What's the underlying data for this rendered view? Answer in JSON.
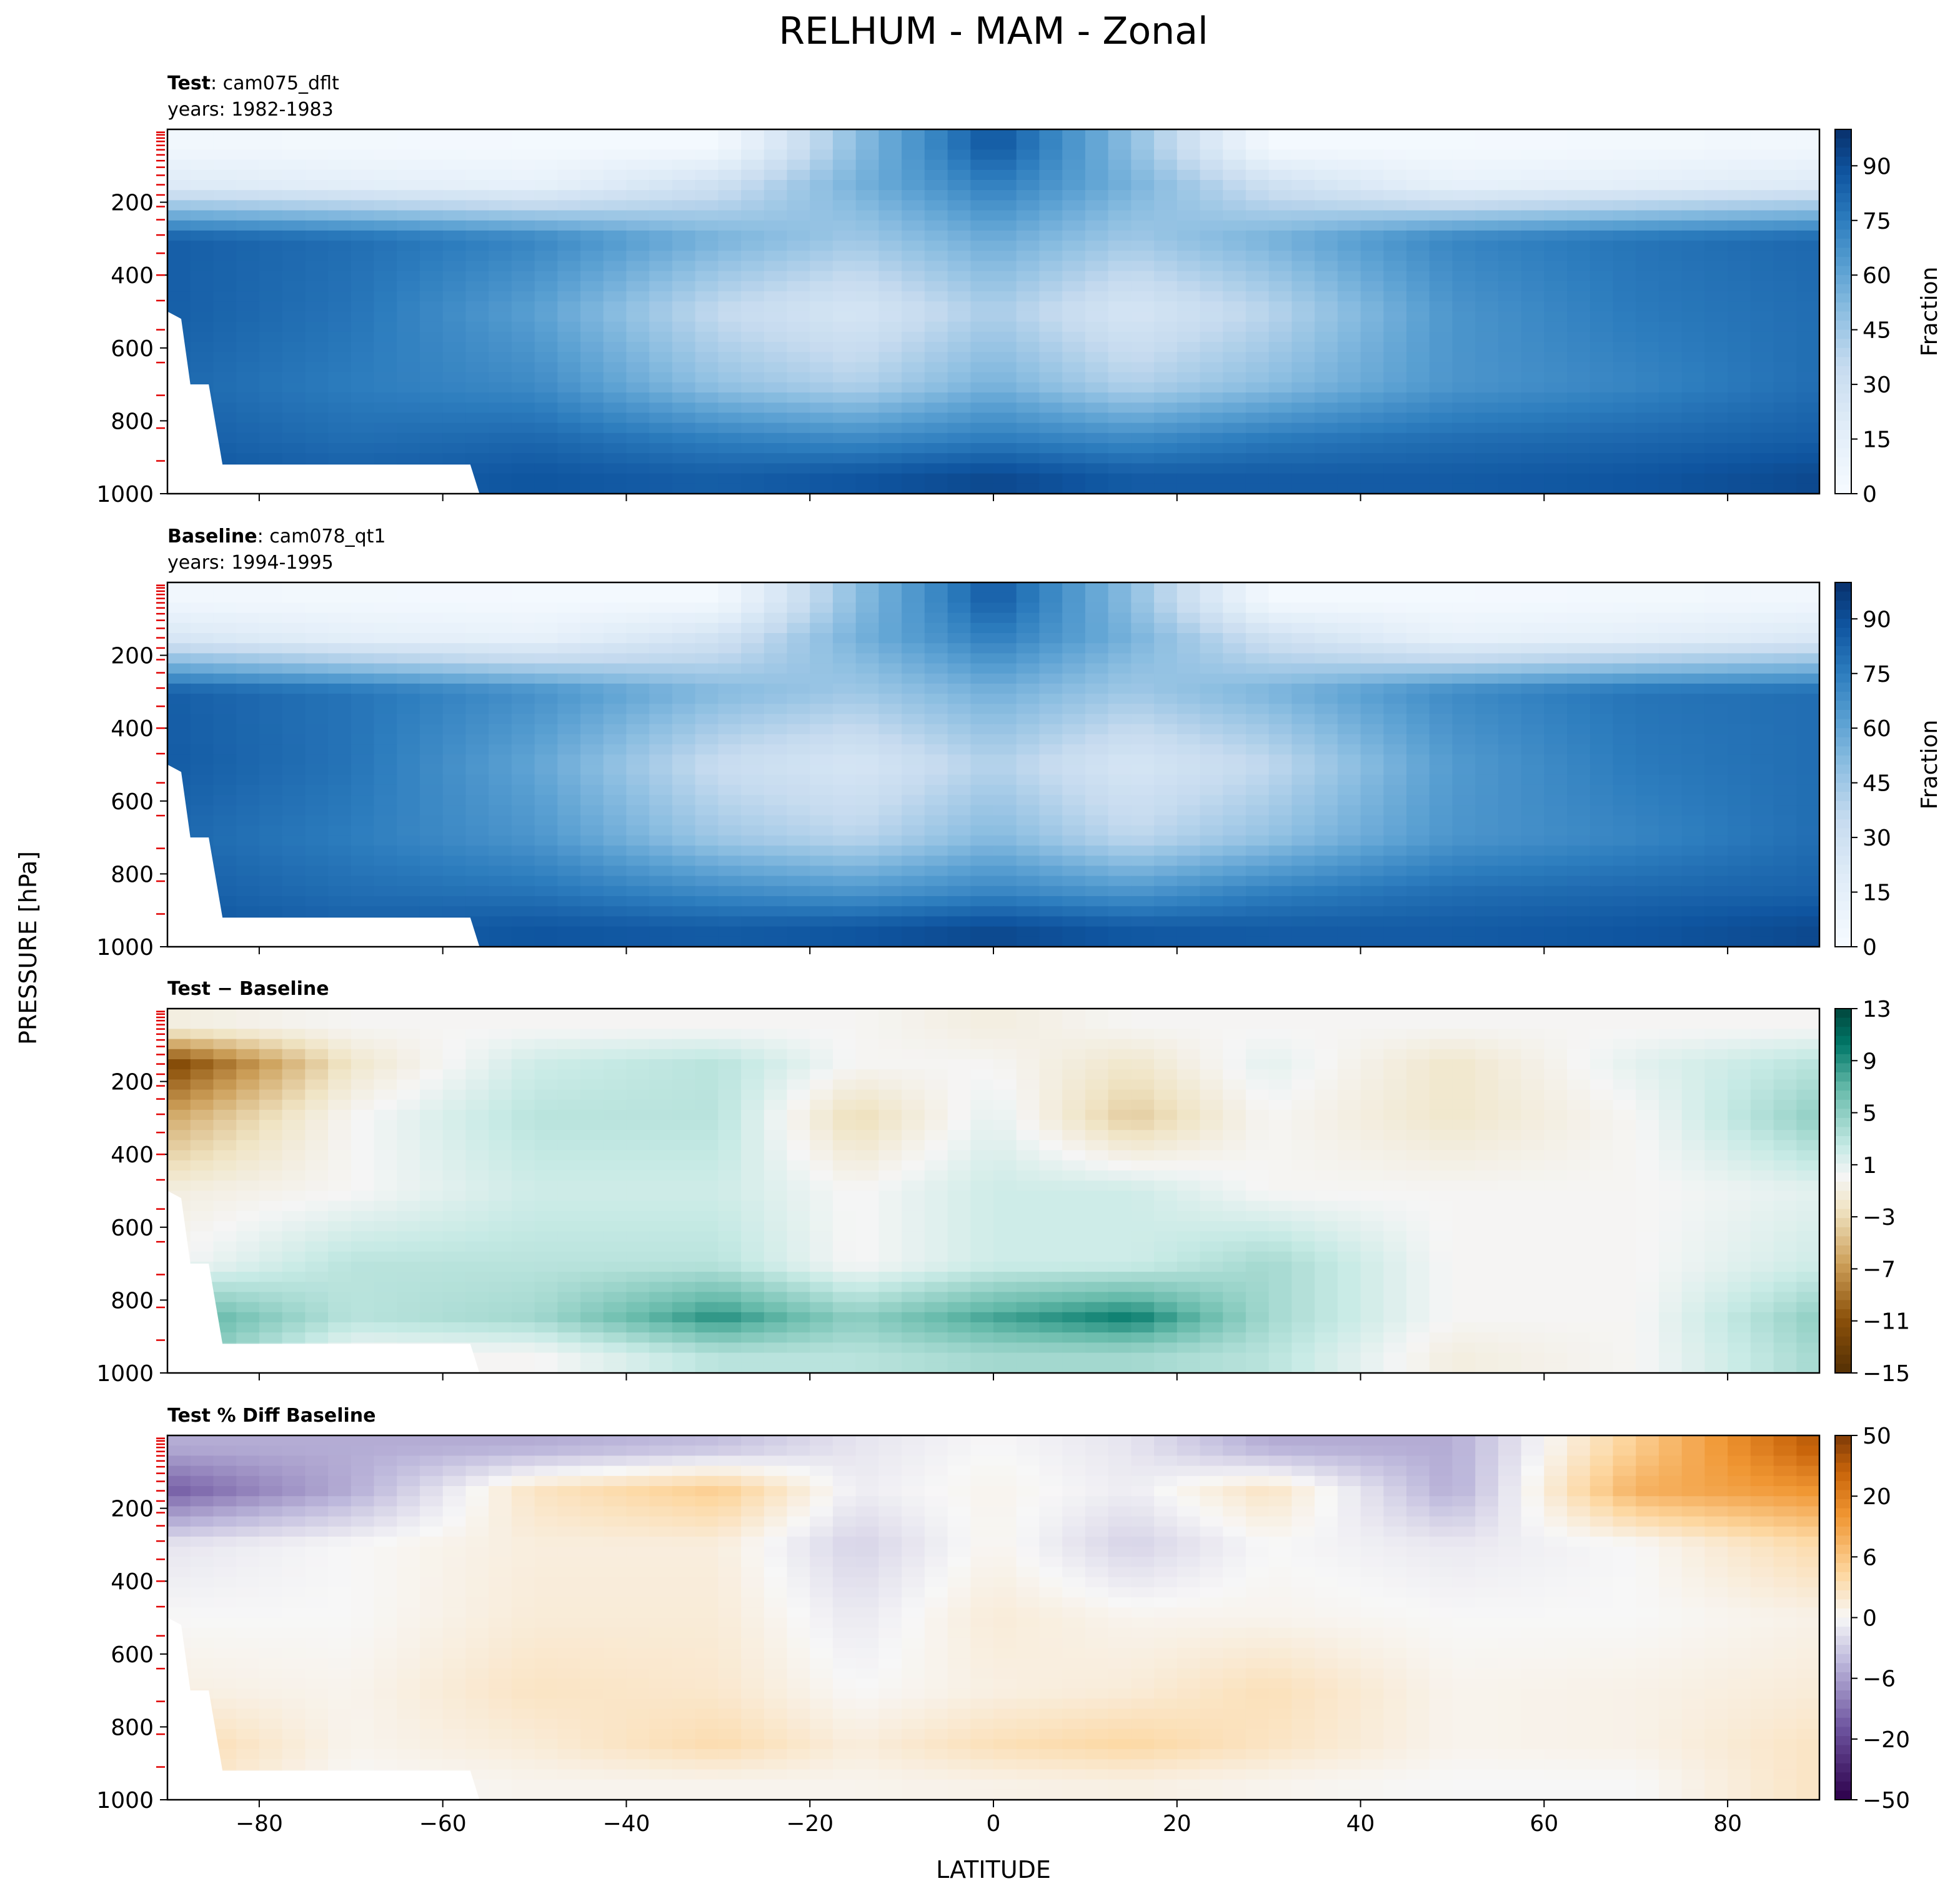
{
  "figure": {
    "title": "RELHUM - MAM - Zonal",
    "xlabel": "LATITUDE",
    "ylabel": "PRESSURE [hPa]"
  },
  "chart_data": [
    {
      "type": "heatmap",
      "panel": "test",
      "title_bold": "Test",
      "title_rest": ": cam075_dflt",
      "subtitle": "years: 1982-1983",
      "xlim": [
        -90,
        90
      ],
      "ylim": [
        1000,
        0
      ],
      "xticks": [
        -80,
        -60,
        -40,
        -20,
        0,
        20,
        40,
        60,
        80
      ],
      "yticks": [
        200,
        400,
        600,
        800,
        1000
      ],
      "colorbar": {
        "label": "Fraction",
        "ticks": [
          "0",
          "15",
          "30",
          "45",
          "60",
          "75",
          "90"
        ],
        "range": [
          0,
          100
        ],
        "colormap": "Blues"
      },
      "lat": [
        -90,
        -70,
        -50,
        -30,
        -15,
        0,
        15,
        30,
        50,
        70,
        90
      ],
      "pressure": [
        50,
        150,
        300,
        500,
        700,
        850,
        950
      ],
      "values": [
        [
          5,
          4,
          3,
          3,
          50,
          88,
          50,
          3,
          3,
          4,
          5
        ],
        [
          20,
          15,
          12,
          30,
          55,
          75,
          55,
          30,
          12,
          15,
          20
        ],
        [
          85,
          80,
          72,
          55,
          45,
          58,
          45,
          55,
          72,
          78,
          82
        ],
        [
          85,
          78,
          62,
          35,
          25,
          42,
          25,
          38,
          66,
          76,
          80
        ],
        [
          82,
          75,
          70,
          48,
          40,
          55,
          40,
          50,
          66,
          72,
          80
        ],
        [
          85,
          80,
          82,
          74,
          70,
          75,
          70,
          76,
          80,
          82,
          85
        ],
        [
          88,
          85,
          88,
          85,
          88,
          92,
          86,
          86,
          86,
          88,
          92
        ]
      ]
    },
    {
      "type": "heatmap",
      "panel": "baseline",
      "title_bold": "Baseline",
      "title_rest": ": cam078_qt1",
      "subtitle": "years: 1994-1995",
      "xlim": [
        -90,
        90
      ],
      "ylim": [
        1000,
        0
      ],
      "xticks": [
        -80,
        -60,
        -40,
        -20,
        0,
        20,
        40,
        60,
        80
      ],
      "yticks": [
        200,
        400,
        600,
        800,
        1000
      ],
      "colorbar": {
        "label": "Fraction",
        "ticks": [
          "0",
          "15",
          "30",
          "45",
          "60",
          "75",
          "90"
        ],
        "range": [
          0,
          100
        ],
        "colormap": "Blues"
      },
      "lat": [
        -90,
        -70,
        -50,
        -30,
        -15,
        0,
        15,
        30,
        50,
        70,
        90
      ],
      "pressure": [
        50,
        150,
        300,
        500,
        700,
        850,
        950
      ],
      "values": [
        [
          5,
          4,
          3,
          3,
          50,
          86,
          50,
          3,
          3,
          4,
          5
        ],
        [
          24,
          15,
          12,
          28,
          55,
          75,
          55,
          30,
          12,
          15,
          22
        ],
        [
          85,
          78,
          68,
          52,
          45,
          56,
          45,
          54,
          70,
          78,
          80
        ],
        [
          86,
          78,
          60,
          33,
          25,
          40,
          25,
          36,
          64,
          76,
          80
        ],
        [
          82,
          75,
          66,
          45,
          38,
          52,
          37,
          48,
          66,
          72,
          80
        ],
        [
          85,
          80,
          78,
          70,
          66,
          72,
          66,
          74,
          80,
          82,
          84
        ],
        [
          88,
          85,
          88,
          86,
          88,
          92,
          87,
          86,
          86,
          88,
          92
        ]
      ]
    },
    {
      "type": "heatmap",
      "panel": "difference",
      "title_bold": "Test − Baseline",
      "xlim": [
        -90,
        90
      ],
      "ylim": [
        1000,
        0
      ],
      "xticks": [
        -80,
        -60,
        -40,
        -20,
        0,
        20,
        40,
        60,
        80
      ],
      "yticks": [
        200,
        400,
        600,
        800,
        1000
      ],
      "colorbar": {
        "label": "",
        "ticks": [
          "13",
          "9",
          "5",
          "1",
          "−3",
          "−7",
          "−11",
          "−15"
        ],
        "range": [
          -15,
          13
        ],
        "colormap": "BrBG"
      },
      "lat": [
        -90,
        -70,
        -50,
        -30,
        -15,
        0,
        15,
        30,
        50,
        70,
        90
      ],
      "pressure": [
        50,
        150,
        300,
        500,
        700,
        850,
        950
      ],
      "values": [
        [
          -1,
          0,
          0,
          0,
          0,
          -1,
          0,
          0,
          0,
          0,
          0
        ],
        [
          -12,
          -2,
          2,
          3,
          0,
          0,
          -2,
          1,
          -2,
          1,
          3
        ],
        [
          -6,
          0,
          3,
          3,
          -3,
          1,
          -4,
          0,
          -2,
          0,
          5
        ],
        [
          -1,
          0,
          2,
          2,
          0,
          2,
          2,
          0,
          0,
          0,
          1
        ],
        [
          0,
          3,
          3,
          3,
          0,
          2,
          2,
          4,
          0,
          0,
          2
        ],
        [
          8,
          3,
          4,
          9,
          5,
          8,
          10,
          4,
          0,
          0,
          5
        ],
        [
          6,
          0,
          0,
          3,
          3,
          4,
          4,
          3,
          -1,
          0,
          4
        ]
      ]
    },
    {
      "type": "heatmap",
      "panel": "percent_difference",
      "title_bold": "Test % Diff Baseline",
      "xlim": [
        -90,
        90
      ],
      "ylim": [
        1000,
        0
      ],
      "xticks": [
        -80,
        -60,
        -40,
        -20,
        0,
        20,
        40,
        60,
        80
      ],
      "yticks": [
        200,
        400,
        600,
        800,
        1000
      ],
      "colorbar": {
        "label": "",
        "ticks": [
          "50",
          "20",
          "6",
          "0",
          "−6",
          "−20",
          "−50"
        ],
        "range": [
          -70,
          70
        ],
        "colormap": "PuOr"
      },
      "lat": [
        -90,
        -70,
        -50,
        -30,
        -15,
        0,
        15,
        30,
        50,
        70,
        90
      ],
      "pressure": [
        30,
        150,
        300,
        500,
        700,
        850,
        950
      ],
      "values": [
        [
          -20,
          -20,
          -20,
          -15,
          -5,
          0,
          -5,
          -20,
          -20,
          20,
          60
        ],
        [
          -40,
          -20,
          10,
          20,
          -3,
          2,
          -3,
          10,
          -20,
          30,
          40
        ],
        [
          -5,
          0,
          5,
          5,
          -10,
          2,
          -10,
          0,
          -4,
          0,
          15
        ],
        [
          0,
          0,
          6,
          6,
          -4,
          6,
          2,
          2,
          0,
          0,
          3
        ],
        [
          4,
          2,
          10,
          8,
          0,
          4,
          6,
          12,
          2,
          3,
          6
        ],
        [
          15,
          2,
          6,
          14,
          5,
          12,
          16,
          10,
          2,
          3,
          10
        ],
        [
          10,
          0,
          2,
          2,
          2,
          3,
          4,
          2,
          0,
          0,
          10
        ]
      ]
    }
  ]
}
